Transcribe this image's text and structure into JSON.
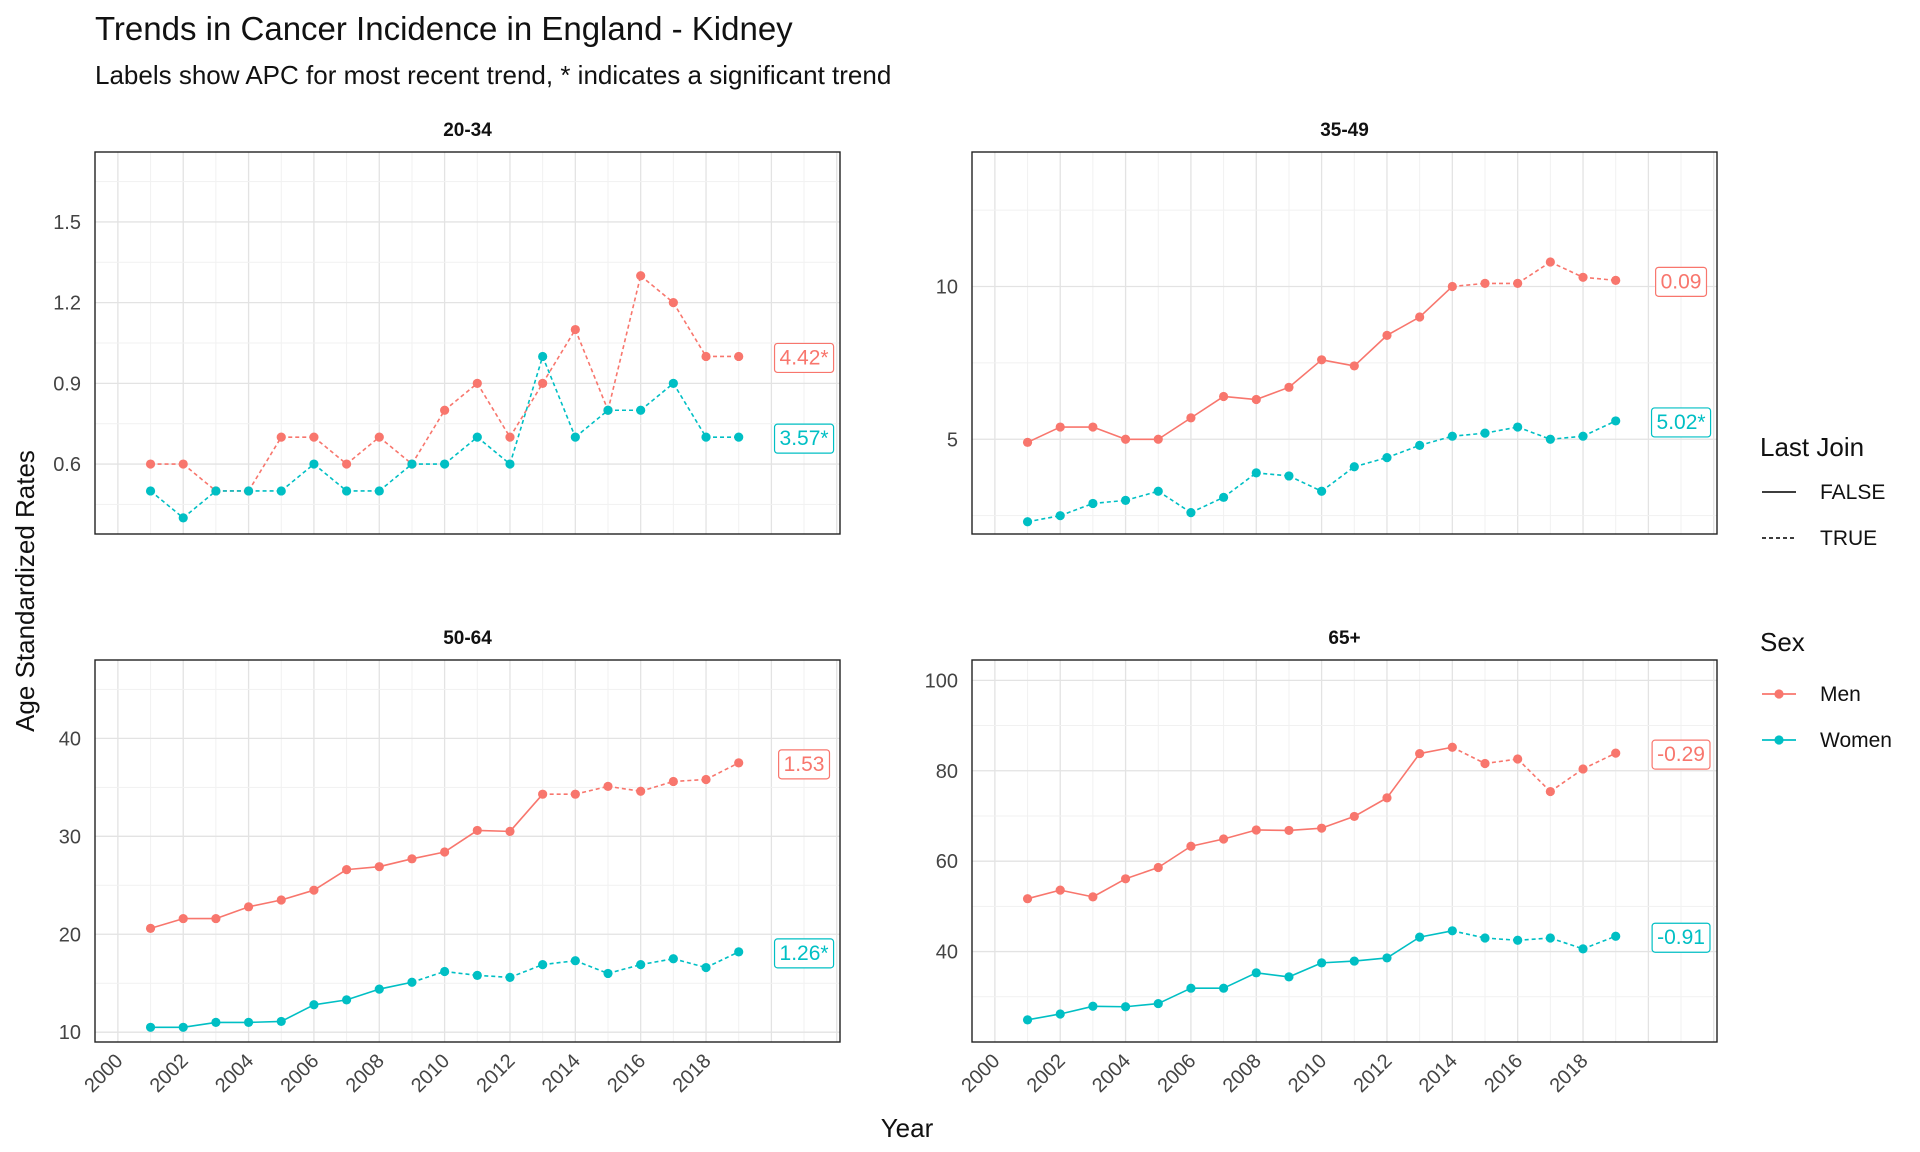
{
  "chart_data": {
    "type": "line",
    "title": "Trends in Cancer Incidence in England - Kidney",
    "subtitle": "Labels show APC for most recent trend, * indicates a significant trend",
    "xlabel": "Year",
    "ylabel": "Age Standardized Rates",
    "x_ticks": [
      "2000",
      "2002",
      "2004",
      "2006",
      "2008",
      "2010",
      "2012",
      "2014",
      "2016",
      "2018"
    ],
    "colors": {
      "Men": "#F8766D",
      "Women": "#00BFC4"
    },
    "legend": {
      "position": "right",
      "linetype_title": "Last Join",
      "linetype_entries": [
        "FALSE",
        "TRUE"
      ],
      "color_title": "Sex",
      "color_entries": [
        "Men",
        "Women"
      ]
    },
    "panels": [
      {
        "facet": "20-34",
        "xlim": [
          1999.3,
          2022.1
        ],
        "ylim": [
          0.34,
          1.76
        ],
        "y_ticks": [
          0.6,
          0.9,
          1.2,
          1.5
        ],
        "y_tick_labels": [
          "0.6",
          "0.9",
          "1.2",
          "1.5"
        ],
        "series": [
          {
            "name": "Men",
            "x": [
              2001,
              2002,
              2003,
              2004,
              2005,
              2006,
              2007,
              2008,
              2009,
              2010,
              2011,
              2012,
              2013,
              2014,
              2015,
              2016,
              2017,
              2018,
              2019
            ],
            "values": [
              0.6,
              0.6,
              0.5,
              0.5,
              0.7,
              0.7,
              0.6,
              0.7,
              0.6,
              0.8,
              0.9,
              0.7,
              0.9,
              1.1,
              0.8,
              1.3,
              1.2,
              1.0,
              1.0
            ],
            "last_join_from_year": 2001,
            "apc_label": "4.42*"
          },
          {
            "name": "Women",
            "x": [
              2001,
              2002,
              2003,
              2004,
              2005,
              2006,
              2007,
              2008,
              2009,
              2010,
              2011,
              2012,
              2013,
              2014,
              2015,
              2016,
              2017,
              2018,
              2019
            ],
            "values": [
              0.5,
              0.4,
              0.5,
              0.5,
              0.5,
              0.6,
              0.5,
              0.5,
              0.6,
              0.6,
              0.7,
              0.6,
              1.0,
              0.7,
              0.8,
              0.8,
              0.9,
              0.7,
              0.7
            ],
            "last_join_from_year": 2001,
            "apc_label": "3.57*"
          }
        ]
      },
      {
        "facet": "35-49",
        "xlim": [
          1999.3,
          2022.1
        ],
        "ylim": [
          1.9,
          14.4
        ],
        "y_ticks": [
          5,
          10
        ],
        "y_tick_labels": [
          "5",
          "10"
        ],
        "series": [
          {
            "name": "Men",
            "x": [
              2001,
              2002,
              2003,
              2004,
              2005,
              2006,
              2007,
              2008,
              2009,
              2010,
              2011,
              2012,
              2013,
              2014,
              2015,
              2016,
              2017,
              2018,
              2019
            ],
            "values": [
              4.9,
              5.4,
              5.4,
              5.0,
              5.0,
              5.7,
              6.4,
              6.3,
              6.7,
              7.6,
              7.4,
              8.4,
              9.0,
              10.0,
              10.1,
              10.1,
              10.8,
              10.3,
              10.2
            ],
            "last_join_from_year": 2014,
            "apc_label": "0.09"
          },
          {
            "name": "Women",
            "x": [
              2001,
              2002,
              2003,
              2004,
              2005,
              2006,
              2007,
              2008,
              2009,
              2010,
              2011,
              2012,
              2013,
              2014,
              2015,
              2016,
              2017,
              2018,
              2019
            ],
            "values": [
              2.3,
              2.5,
              2.9,
              3.0,
              3.3,
              2.6,
              3.1,
              3.9,
              3.8,
              3.3,
              4.1,
              4.4,
              4.8,
              5.1,
              5.2,
              5.4,
              5.0,
              5.1,
              5.6
            ],
            "last_join_from_year": 2001,
            "apc_label": "5.02*"
          }
        ]
      },
      {
        "facet": "50-64",
        "xlim": [
          1999.3,
          2022.1
        ],
        "ylim": [
          9.0,
          48.0
        ],
        "y_ticks": [
          10,
          20,
          30,
          40
        ],
        "y_tick_labels": [
          "10",
          "20",
          "30",
          "40"
        ],
        "series": [
          {
            "name": "Men",
            "x": [
              2001,
              2002,
              2003,
              2004,
              2005,
              2006,
              2007,
              2008,
              2009,
              2010,
              2011,
              2012,
              2013,
              2014,
              2015,
              2016,
              2017,
              2018,
              2019
            ],
            "values": [
              20.6,
              21.6,
              21.6,
              22.8,
              23.5,
              24.5,
              26.6,
              26.9,
              27.7,
              28.4,
              30.6,
              30.5,
              34.3,
              34.3,
              35.1,
              34.6,
              35.6,
              35.8,
              37.5
            ],
            "last_join_from_year": 2013,
            "apc_label": "1.53"
          },
          {
            "name": "Women",
            "x": [
              2001,
              2002,
              2003,
              2004,
              2005,
              2006,
              2007,
              2008,
              2009,
              2010,
              2011,
              2012,
              2013,
              2014,
              2015,
              2016,
              2017,
              2018,
              2019
            ],
            "values": [
              10.5,
              10.5,
              11.0,
              11.0,
              11.1,
              12.8,
              13.3,
              14.4,
              15.1,
              16.2,
              15.8,
              15.6,
              16.9,
              17.3,
              16.0,
              16.9,
              17.5,
              16.6,
              18.2
            ],
            "last_join_from_year": 2009,
            "apc_label": "1.26*"
          }
        ]
      },
      {
        "facet": "65+",
        "xlim": [
          1999.3,
          2022.1
        ],
        "ylim": [
          20.0,
          104.5
        ],
        "y_ticks": [
          40,
          60,
          80,
          100
        ],
        "y_tick_labels": [
          "40",
          "60",
          "80",
          "100"
        ],
        "series": [
          {
            "name": "Men",
            "x": [
              2001,
              2002,
              2003,
              2004,
              2005,
              2006,
              2007,
              2008,
              2009,
              2010,
              2011,
              2012,
              2013,
              2014,
              2015,
              2016,
              2017,
              2018,
              2019
            ],
            "values": [
              51.7,
              53.6,
              52.1,
              56.1,
              58.6,
              63.3,
              64.9,
              66.9,
              66.8,
              67.3,
              69.9,
              74.0,
              83.8,
              85.2,
              81.6,
              82.6,
              75.4,
              80.4,
              83.9
            ],
            "last_join_from_year": 2014,
            "apc_label": "-0.29"
          },
          {
            "name": "Women",
            "x": [
              2001,
              2002,
              2003,
              2004,
              2005,
              2006,
              2007,
              2008,
              2009,
              2010,
              2011,
              2012,
              2013,
              2014,
              2015,
              2016,
              2017,
              2018,
              2019
            ],
            "values": [
              24.9,
              26.2,
              27.9,
              27.8,
              28.5,
              31.9,
              31.9,
              35.3,
              34.4,
              37.5,
              37.9,
              38.6,
              43.2,
              44.6,
              43.0,
              42.5,
              43.0,
              40.6,
              43.4
            ],
            "last_join_from_year": 2014,
            "apc_label": "-0.91"
          }
        ]
      }
    ]
  }
}
